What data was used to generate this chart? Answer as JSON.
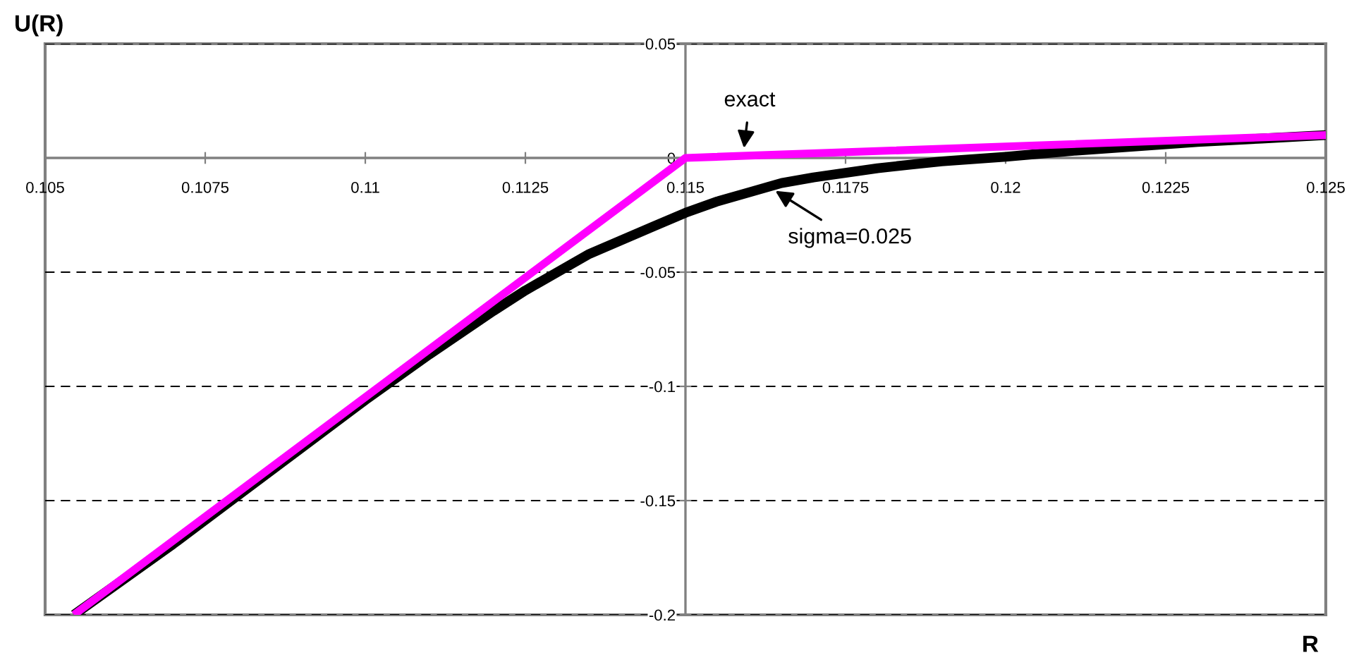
{
  "chart_data": {
    "type": "line",
    "ylabel": "U(R)",
    "xlabel": "R",
    "series": [
      {
        "name": "sigma=0.025",
        "color": "#000000",
        "x": [
          0.10545,
          0.107,
          0.108,
          0.109,
          0.11,
          0.111,
          0.112,
          0.1125,
          0.113,
          0.1135,
          0.114,
          0.1145,
          0.115,
          0.1155,
          0.116,
          0.1165,
          0.117,
          0.1175,
          0.118,
          0.1185,
          0.119,
          0.1195,
          0.12,
          0.121,
          0.122,
          0.123,
          0.124,
          0.125
        ],
        "values": [
          -0.2,
          -0.169,
          -0.148,
          -0.127,
          -0.106,
          -0.086,
          -0.067,
          -0.058,
          -0.05,
          -0.042,
          -0.036,
          -0.03,
          -0.024,
          -0.019,
          -0.015,
          -0.011,
          -0.0085,
          -0.0065,
          -0.0045,
          -0.003,
          -0.0015,
          -0.0005,
          0.0005,
          0.003,
          0.005,
          0.007,
          0.0085,
          0.01
        ]
      },
      {
        "name": "exact",
        "color": "#ff00ff",
        "x": [
          0.10545,
          0.115,
          0.125
        ],
        "values": [
          -0.2,
          0.0,
          0.01
        ]
      }
    ],
    "xlim": [
      0.105,
      0.125
    ],
    "xticks": [
      0.105,
      0.1075,
      0.11,
      0.1125,
      0.115,
      0.1175,
      0.12,
      0.1225,
      0.125
    ],
    "ylim": [
      -0.2,
      0.05
    ],
    "yticks": [
      -0.2,
      -0.15,
      -0.1,
      -0.05,
      0,
      0.05
    ],
    "grid": "y",
    "line_style": "solid",
    "marker": "none"
  }
}
